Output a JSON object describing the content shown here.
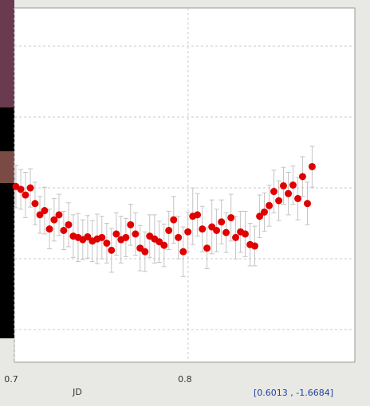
{
  "chart_data": {
    "type": "scatter",
    "x_label": "JD",
    "x": [
      0.7009,
      0.7037,
      0.7064,
      0.7092,
      0.7119,
      0.7147,
      0.7174,
      0.7202,
      0.7229,
      0.7257,
      0.7284,
      0.7312,
      0.7339,
      0.7367,
      0.7394,
      0.7422,
      0.7449,
      0.7477,
      0.7504,
      0.7532,
      0.7559,
      0.7587,
      0.7614,
      0.7642,
      0.7669,
      0.7697,
      0.7724,
      0.7752,
      0.7779,
      0.7807,
      0.7834,
      0.7862,
      0.7889,
      0.7917,
      0.7944,
      0.7972,
      0.7999,
      0.8027,
      0.8054,
      0.8082,
      0.8109,
      0.8137,
      0.8164,
      0.8192,
      0.8219,
      0.8247,
      0.8274,
      0.8302,
      0.8329,
      0.8357,
      0.8384,
      0.8412,
      0.8439,
      0.8467,
      0.8494,
      0.8522,
      0.8549,
      0.8577,
      0.8604,
      0.8632,
      0.8659,
      0.8687,
      0.8714
    ],
    "series": [
      {
        "color": "#e00000",
        "error_color": "#c4c4c4",
        "values": [
          3.02,
          2.98,
          2.9,
          3.0,
          2.78,
          2.62,
          2.68,
          2.42,
          2.55,
          2.62,
          2.4,
          2.48,
          2.32,
          2.3,
          2.27,
          2.31,
          2.25,
          2.28,
          2.3,
          2.22,
          2.12,
          2.35,
          2.27,
          2.3,
          2.48,
          2.35,
          2.15,
          2.1,
          2.32,
          2.28,
          2.24,
          2.19,
          2.4,
          2.55,
          2.3,
          2.1,
          2.38,
          2.6,
          2.62,
          2.42,
          2.15,
          2.45,
          2.4,
          2.52,
          2.37,
          2.58,
          2.3,
          2.38,
          2.35,
          2.2,
          2.18,
          2.6,
          2.66,
          2.75,
          2.95,
          2.82,
          3.03,
          2.92,
          3.04,
          2.85,
          3.16,
          2.78,
          3.3
        ],
        "errors": [
          0.3,
          0.28,
          0.32,
          0.27,
          0.3,
          0.26,
          0.33,
          0.28,
          0.3,
          0.29,
          0.27,
          0.31,
          0.3,
          0.34,
          0.28,
          0.3,
          0.29,
          0.35,
          0.3,
          0.28,
          0.31,
          0.3,
          0.33,
          0.27,
          0.29,
          0.3,
          0.32,
          0.28,
          0.3,
          0.34,
          0.29,
          0.3,
          0.27,
          0.33,
          0.3,
          0.35,
          0.28,
          0.4,
          0.3,
          0.32,
          0.29,
          0.38,
          0.3,
          0.31,
          0.28,
          0.33,
          0.3,
          0.29,
          0.32,
          0.3,
          0.28,
          0.3,
          0.27,
          0.29,
          0.3,
          0.28,
          0.26,
          0.3,
          0.27,
          0.3,
          0.28,
          0.3,
          0.29
        ]
      }
    ],
    "xlim": [
      0.7,
      0.896
    ],
    "ylim": [
      0.54,
      5.54
    ],
    "xticks": [
      0.7,
      0.8
    ],
    "ygrid": [
      1,
      2,
      3,
      4,
      5
    ],
    "grid": true
  },
  "status": "[0.6013 , -1.6684]"
}
